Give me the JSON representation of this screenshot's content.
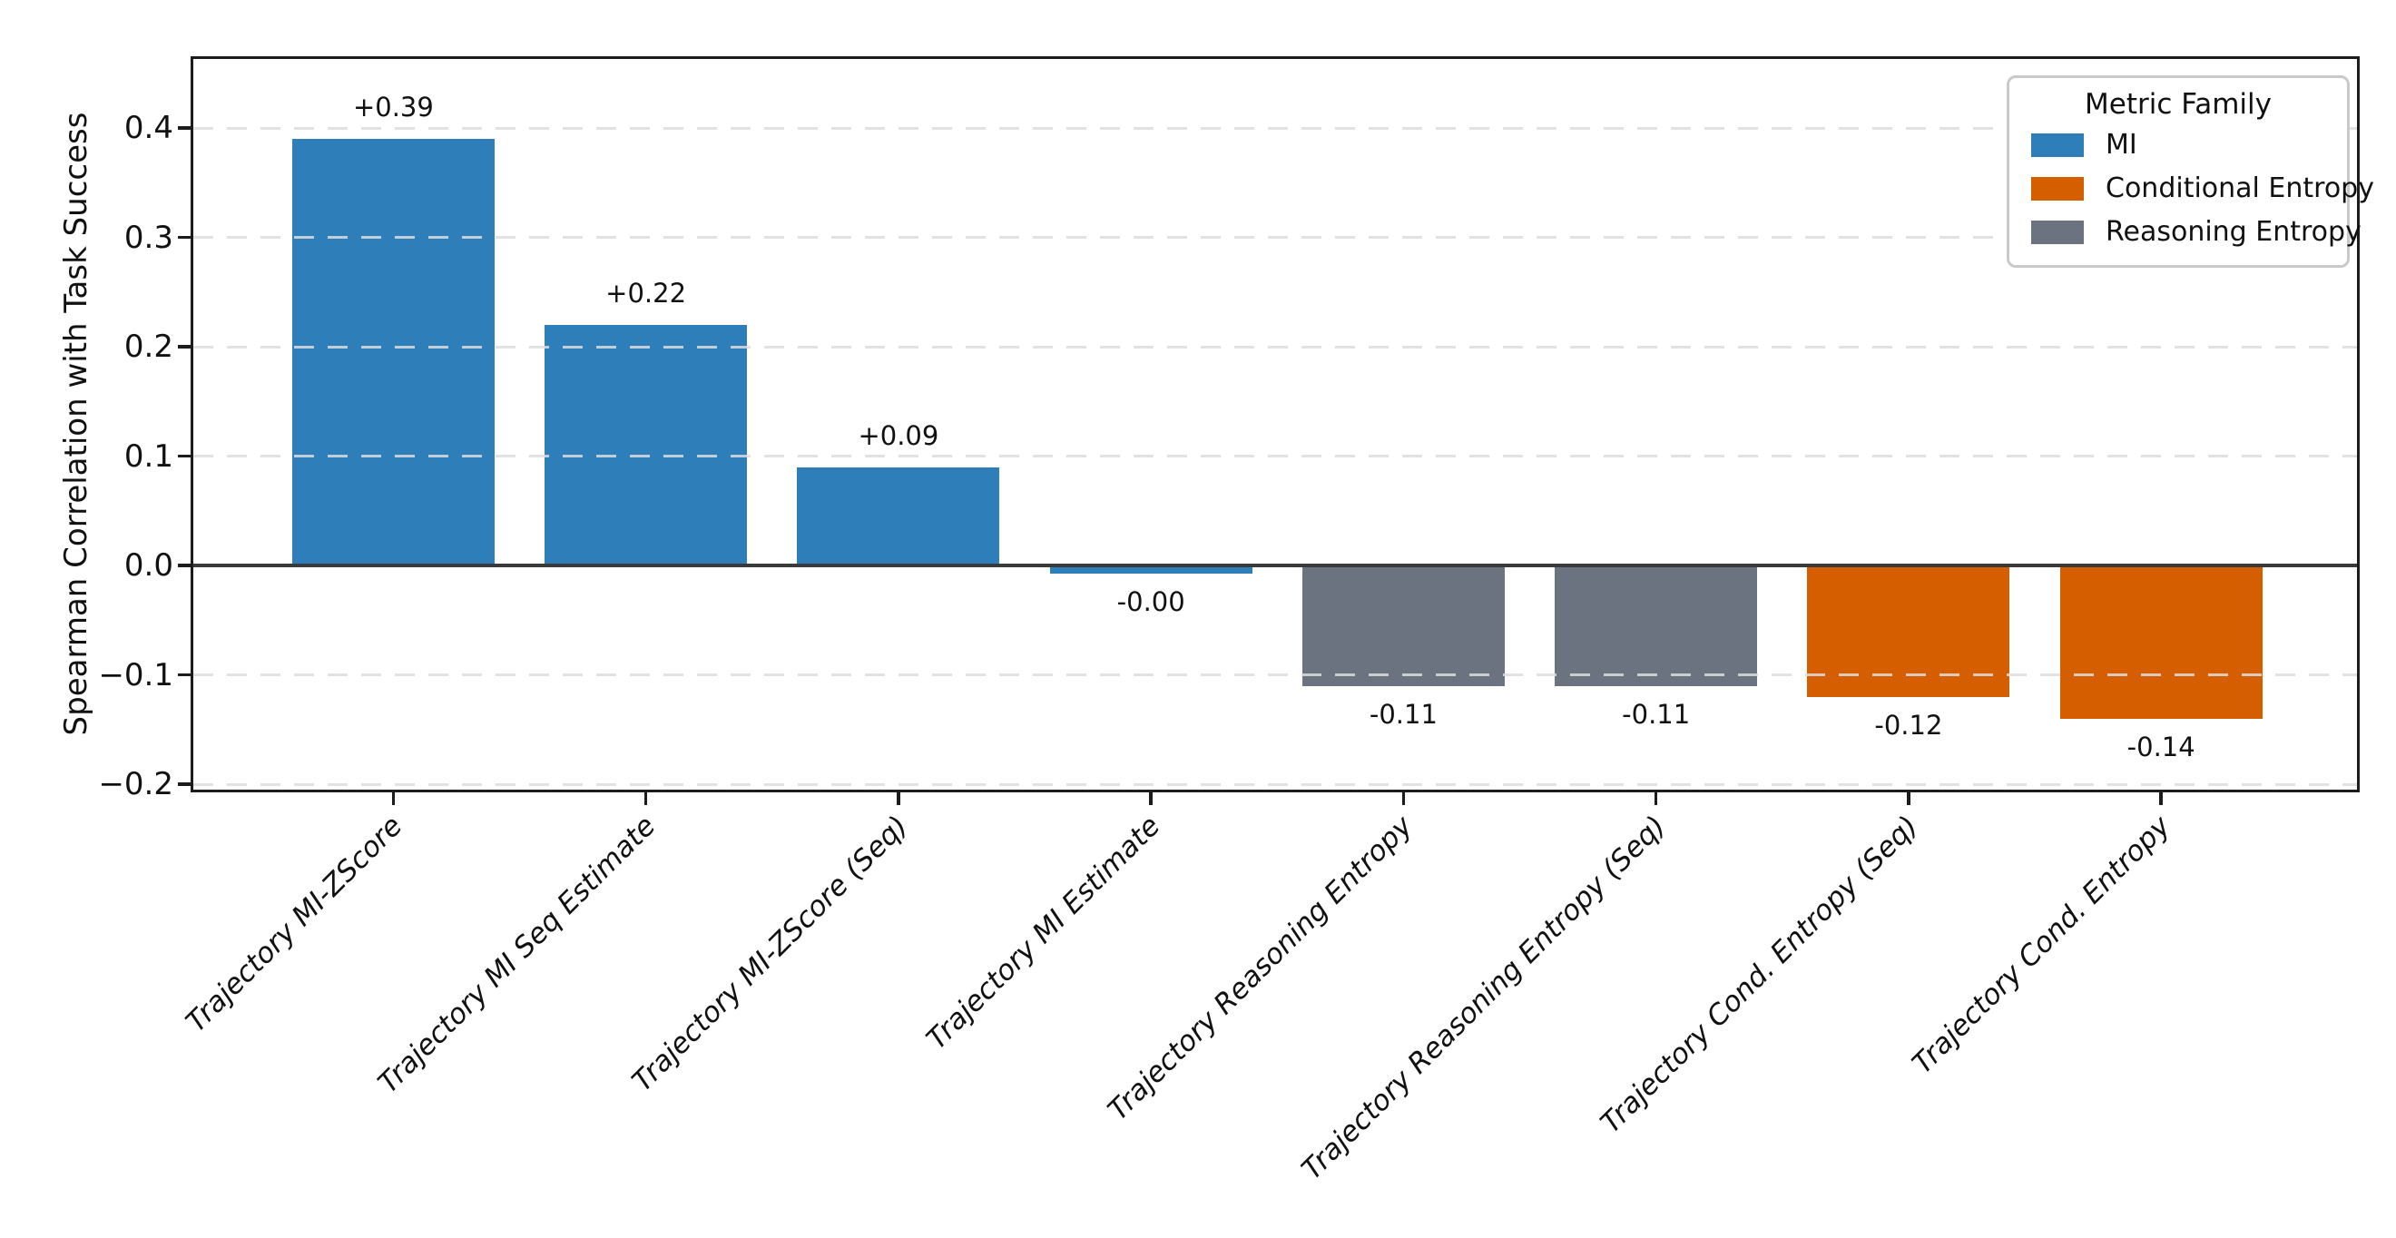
{
  "chart_data": {
    "type": "bar",
    "title": "",
    "xlabel": "",
    "ylabel": "Spearman Correlation with Task Success",
    "categories": [
      "Trajectory MI-ZScore",
      "Trajectory MI Seq Estimate",
      "Trajectory MI-ZScore (Seq)",
      "Trajectory MI Estimate",
      "Trajectory Reasoning Entropy",
      "Trajectory Reasoning Entropy (Seq)",
      "Trajectory Cond. Entropy (Seq)",
      "Trajectory Cond. Entropy"
    ],
    "values": [
      0.39,
      0.22,
      0.09,
      -0.0,
      -0.11,
      -0.11,
      -0.12,
      -0.14
    ],
    "bar_labels": [
      "+0.39",
      "+0.22",
      "+0.09",
      "-0.00",
      "-0.11",
      "-0.11",
      "-0.12",
      "-0.14"
    ],
    "families": [
      "MI",
      "MI",
      "MI",
      "MI",
      "Reasoning Entropy",
      "Reasoning Entropy",
      "Conditional Entropy",
      "Conditional Entropy"
    ],
    "family_colors": {
      "MI": "#2e7eba",
      "Conditional Entropy": "#d55f00",
      "Reasoning Entropy": "#6b7380"
    },
    "ylim": [
      -0.209,
      0.463
    ],
    "yticks": [
      {
        "value": 0.4,
        "label": "0.4"
      },
      {
        "value": 0.3,
        "label": "0.3"
      },
      {
        "value": 0.2,
        "label": "0.2"
      },
      {
        "value": 0.1,
        "label": "0.1"
      },
      {
        "value": 0.0,
        "label": "0.0"
      },
      {
        "value": -0.1,
        "label": "−0.1"
      },
      {
        "value": -0.2,
        "label": "−0.2"
      }
    ],
    "bar_width_fraction": 0.8,
    "x_tick_label_rotation_deg": 45,
    "grid": {
      "axis": "y",
      "style": "dashed",
      "color": "#e3e3e3"
    },
    "zero_line": {
      "value": 0.0,
      "color": "#3a3a3a"
    },
    "legend": {
      "title": "Metric Family",
      "position": "upper right",
      "entries": [
        {
          "label": "MI",
          "color": "#2e7eba"
        },
        {
          "label": "Conditional Entropy",
          "color": "#d55f00"
        },
        {
          "label": "Reasoning Entropy",
          "color": "#6b7380"
        }
      ]
    }
  }
}
